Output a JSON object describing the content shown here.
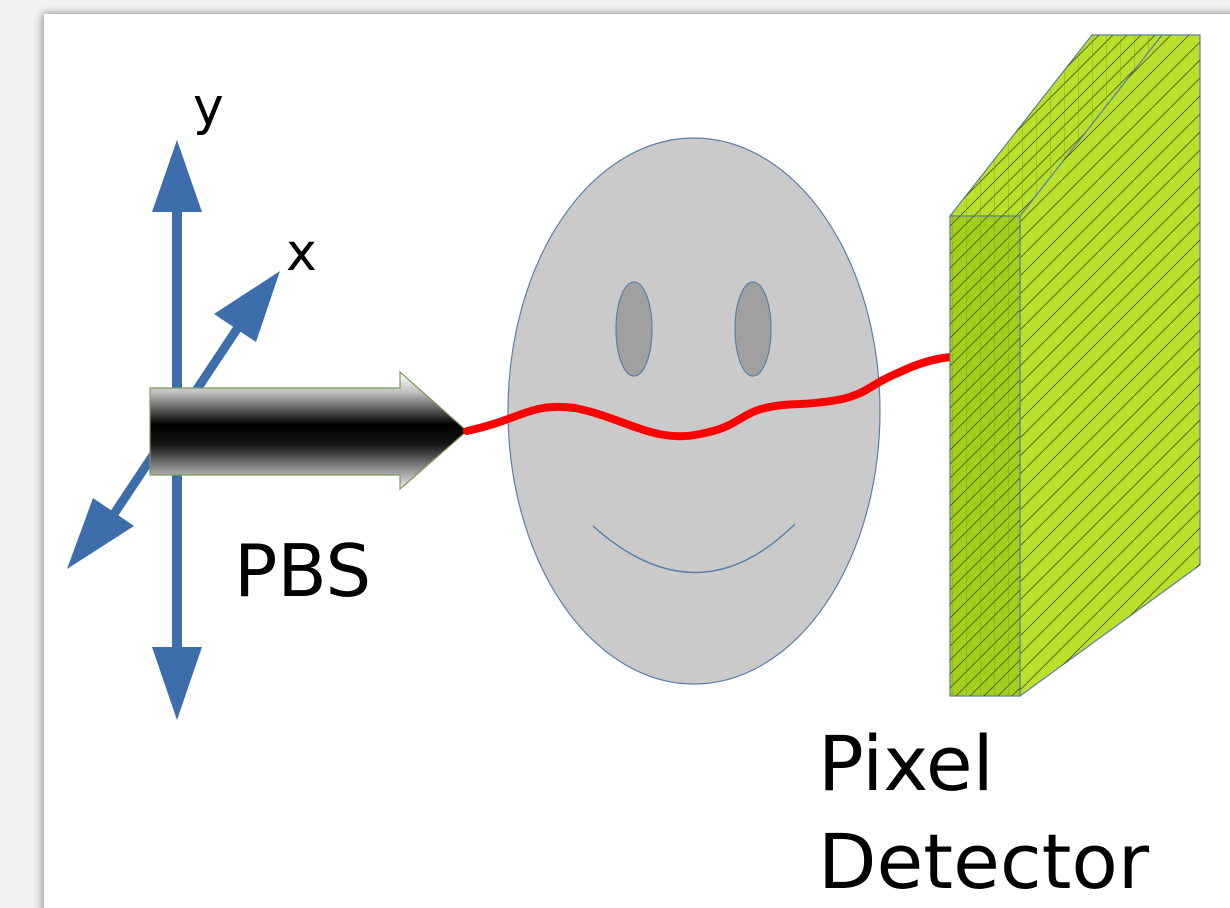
{
  "axes": {
    "y_label": "y",
    "x_label": "x"
  },
  "beam_source": {
    "label": "PBS"
  },
  "detector": {
    "label_line1": "Pixel",
    "label_line2": "Detector"
  },
  "colors": {
    "axis_arrow": "#3d6eab",
    "beam_path": "#ff0000",
    "face_fill": "#cacaca",
    "face_outline": "#5b7fa8",
    "eye_fill": "#a0a0a0",
    "detector_front": "#a3cf1c",
    "detector_side": "#b9e02a",
    "detector_grid": "#4a5a10"
  }
}
